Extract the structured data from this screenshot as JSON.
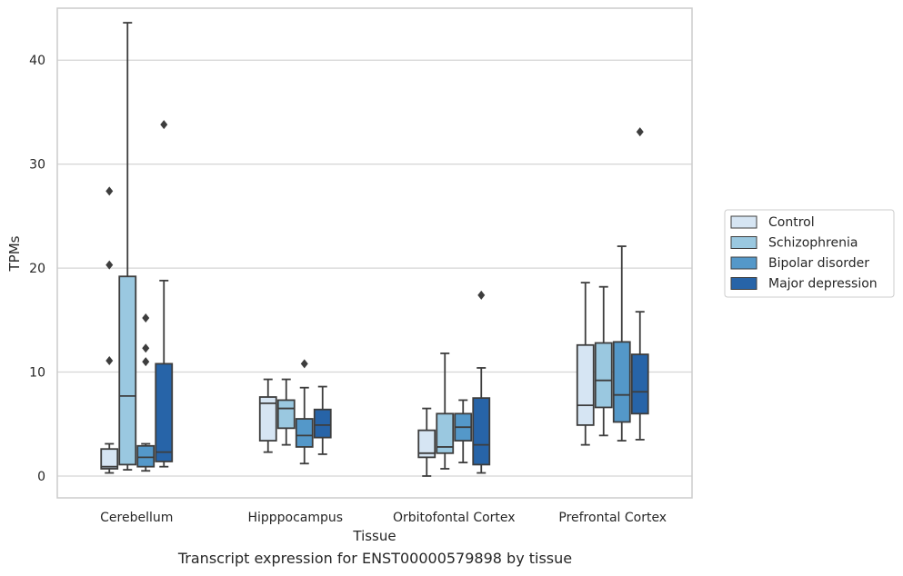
{
  "caption": "Transcript expression for ENST00000579898 by tissue",
  "chart_data": {
    "type": "boxplot",
    "xlabel": "Tissue",
    "ylabel": "TPMs",
    "ylim": [
      -2.1,
      45
    ],
    "yticks": [
      0,
      10,
      20,
      30,
      40
    ],
    "grid": "horizontal",
    "legend_position": "right",
    "categories": [
      "Cerebellum",
      "Hipppocampus",
      "Orbitofontal Cortex",
      "Prefrontal Cortex"
    ],
    "series": [
      {
        "name": "Control",
        "color": "#d6e5f3",
        "boxes": [
          {
            "whislo": 0.3,
            "q1": 0.7,
            "med": 0.9,
            "q3": 2.6,
            "whishi": 3.1,
            "fliers": [
              11.1,
              20.3,
              27.4
            ]
          },
          {
            "whislo": 2.3,
            "q1": 3.4,
            "med": 7.0,
            "q3": 7.6,
            "whishi": 9.3,
            "fliers": []
          },
          {
            "whislo": 0.0,
            "q1": 1.8,
            "med": 2.2,
            "q3": 4.4,
            "whishi": 6.5,
            "fliers": []
          },
          {
            "whislo": 3.0,
            "q1": 4.9,
            "med": 6.8,
            "q3": 12.6,
            "whishi": 18.6,
            "fliers": []
          }
        ]
      },
      {
        "name": "Schizophrenia",
        "color": "#9ac8e0",
        "boxes": [
          {
            "whislo": 0.6,
            "q1": 1.1,
            "med": 7.7,
            "q3": 19.2,
            "whishi": 43.6,
            "fliers": []
          },
          {
            "whislo": 3.0,
            "q1": 4.6,
            "med": 6.5,
            "q3": 7.3,
            "whishi": 9.3,
            "fliers": []
          },
          {
            "whislo": 0.7,
            "q1": 2.2,
            "med": 2.8,
            "q3": 6.0,
            "whishi": 11.8,
            "fliers": []
          },
          {
            "whislo": 3.9,
            "q1": 6.6,
            "med": 9.2,
            "q3": 12.8,
            "whishi": 18.2,
            "fliers": []
          }
        ]
      },
      {
        "name": "Bipolar disorder",
        "color": "#5498c9",
        "boxes": [
          {
            "whislo": 0.5,
            "q1": 0.9,
            "med": 1.8,
            "q3": 2.9,
            "whishi": 3.1,
            "fliers": [
              11.0,
              12.3,
              15.2
            ]
          },
          {
            "whislo": 1.2,
            "q1": 2.8,
            "med": 3.9,
            "q3": 5.5,
            "whishi": 8.5,
            "fliers": [
              10.8
            ]
          },
          {
            "whislo": 1.3,
            "q1": 3.4,
            "med": 4.7,
            "q3": 6.0,
            "whishi": 7.3,
            "fliers": []
          },
          {
            "whislo": 3.4,
            "q1": 5.2,
            "med": 7.8,
            "q3": 12.9,
            "whishi": 22.1,
            "fliers": []
          }
        ]
      },
      {
        "name": "Major depression",
        "color": "#2764a8",
        "boxes": [
          {
            "whislo": 0.9,
            "q1": 1.4,
            "med": 2.3,
            "q3": 10.8,
            "whishi": 18.8,
            "fliers": [
              33.8
            ]
          },
          {
            "whislo": 2.1,
            "q1": 3.7,
            "med": 4.9,
            "q3": 6.4,
            "whishi": 8.6,
            "fliers": []
          },
          {
            "whislo": 0.3,
            "q1": 1.1,
            "med": 3.0,
            "q3": 7.5,
            "whishi": 10.4,
            "fliers": [
              17.4
            ]
          },
          {
            "whislo": 3.5,
            "q1": 6.0,
            "med": 8.1,
            "q3": 11.7,
            "whishi": 15.8,
            "fliers": [
              33.1
            ]
          }
        ]
      }
    ]
  }
}
